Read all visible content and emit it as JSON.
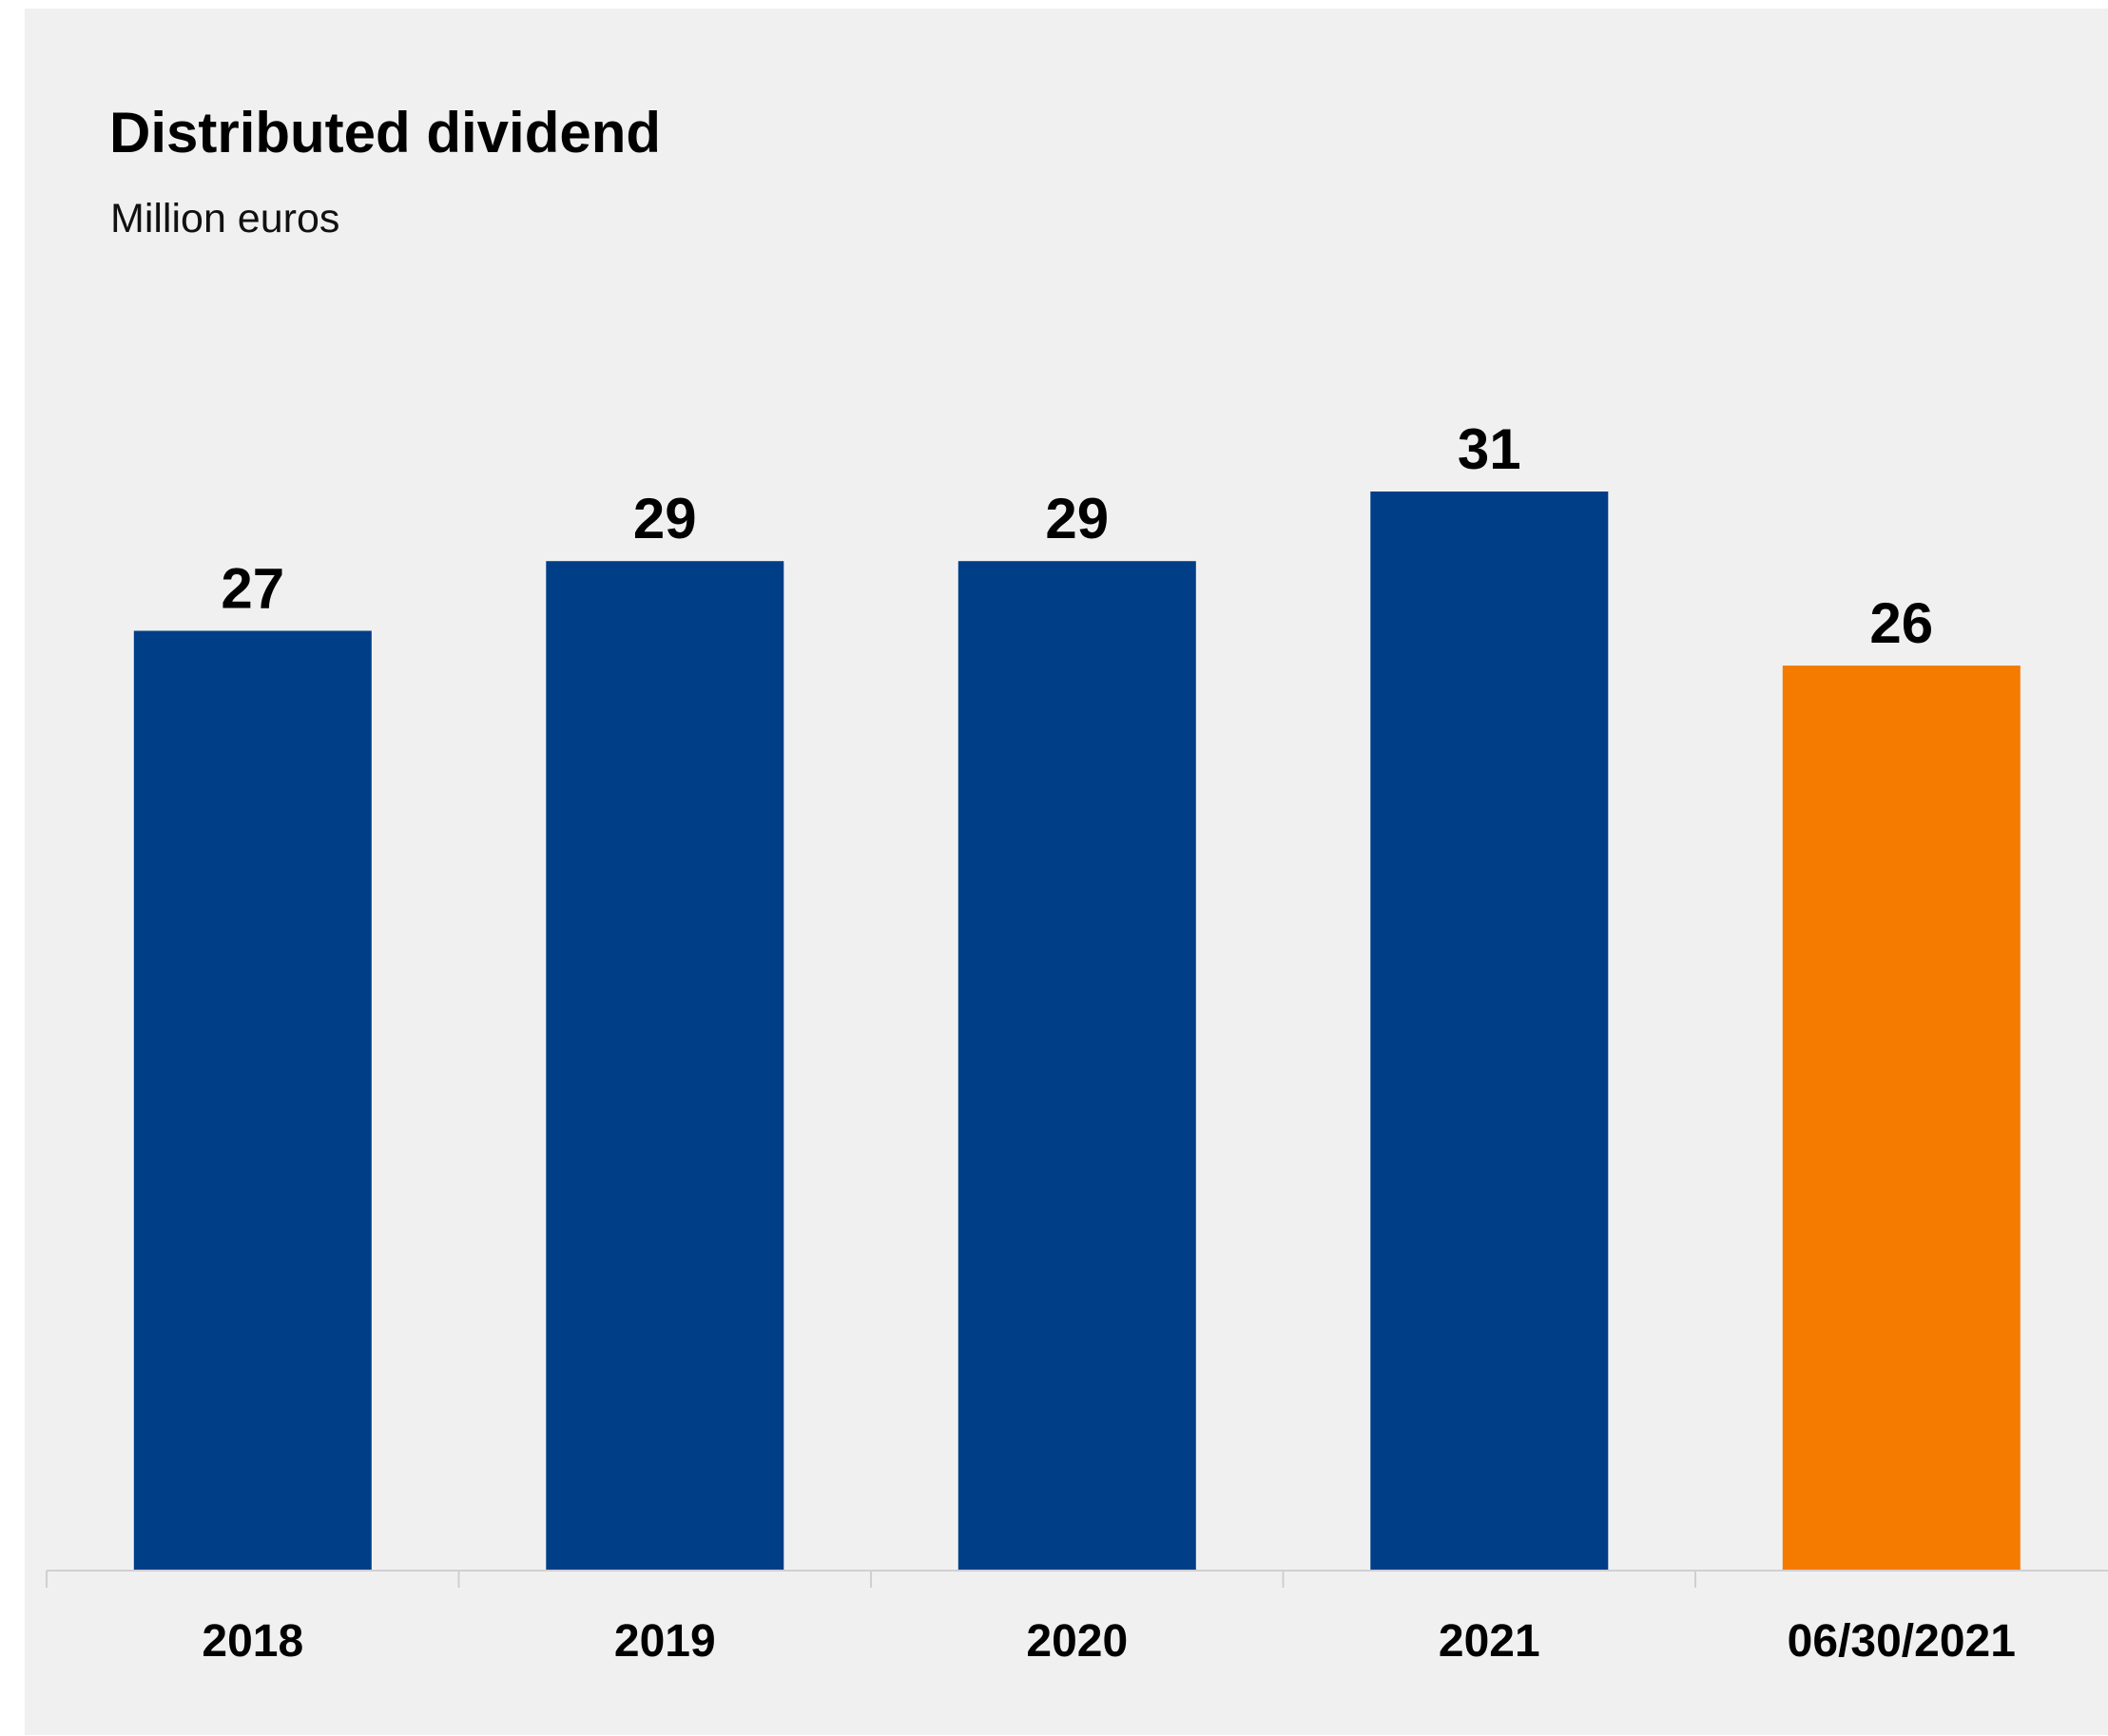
{
  "chart_data": {
    "type": "bar",
    "title": "Distributed dividend",
    "subtitle": "Million euros",
    "categories": [
      "2018",
      "2019",
      "2020",
      "2021",
      "06/30/2021"
    ],
    "values": [
      27,
      29,
      29,
      31,
      26
    ],
    "value_labels": [
      "27",
      "29",
      "29",
      "31",
      "26"
    ],
    "bar_colors": [
      "#003e87",
      "#003e87",
      "#003e87",
      "#003e87",
      "#f47a00"
    ],
    "xlabel": "",
    "ylabel": "",
    "ylim": [
      0,
      31
    ],
    "grid": false,
    "legend": "none",
    "y_axis_visible": false
  },
  "colors": {
    "primary_bar": "#003e87",
    "highlight_bar": "#f47a00",
    "background": "#f1f0f1",
    "axis": "#d0cfd1"
  }
}
